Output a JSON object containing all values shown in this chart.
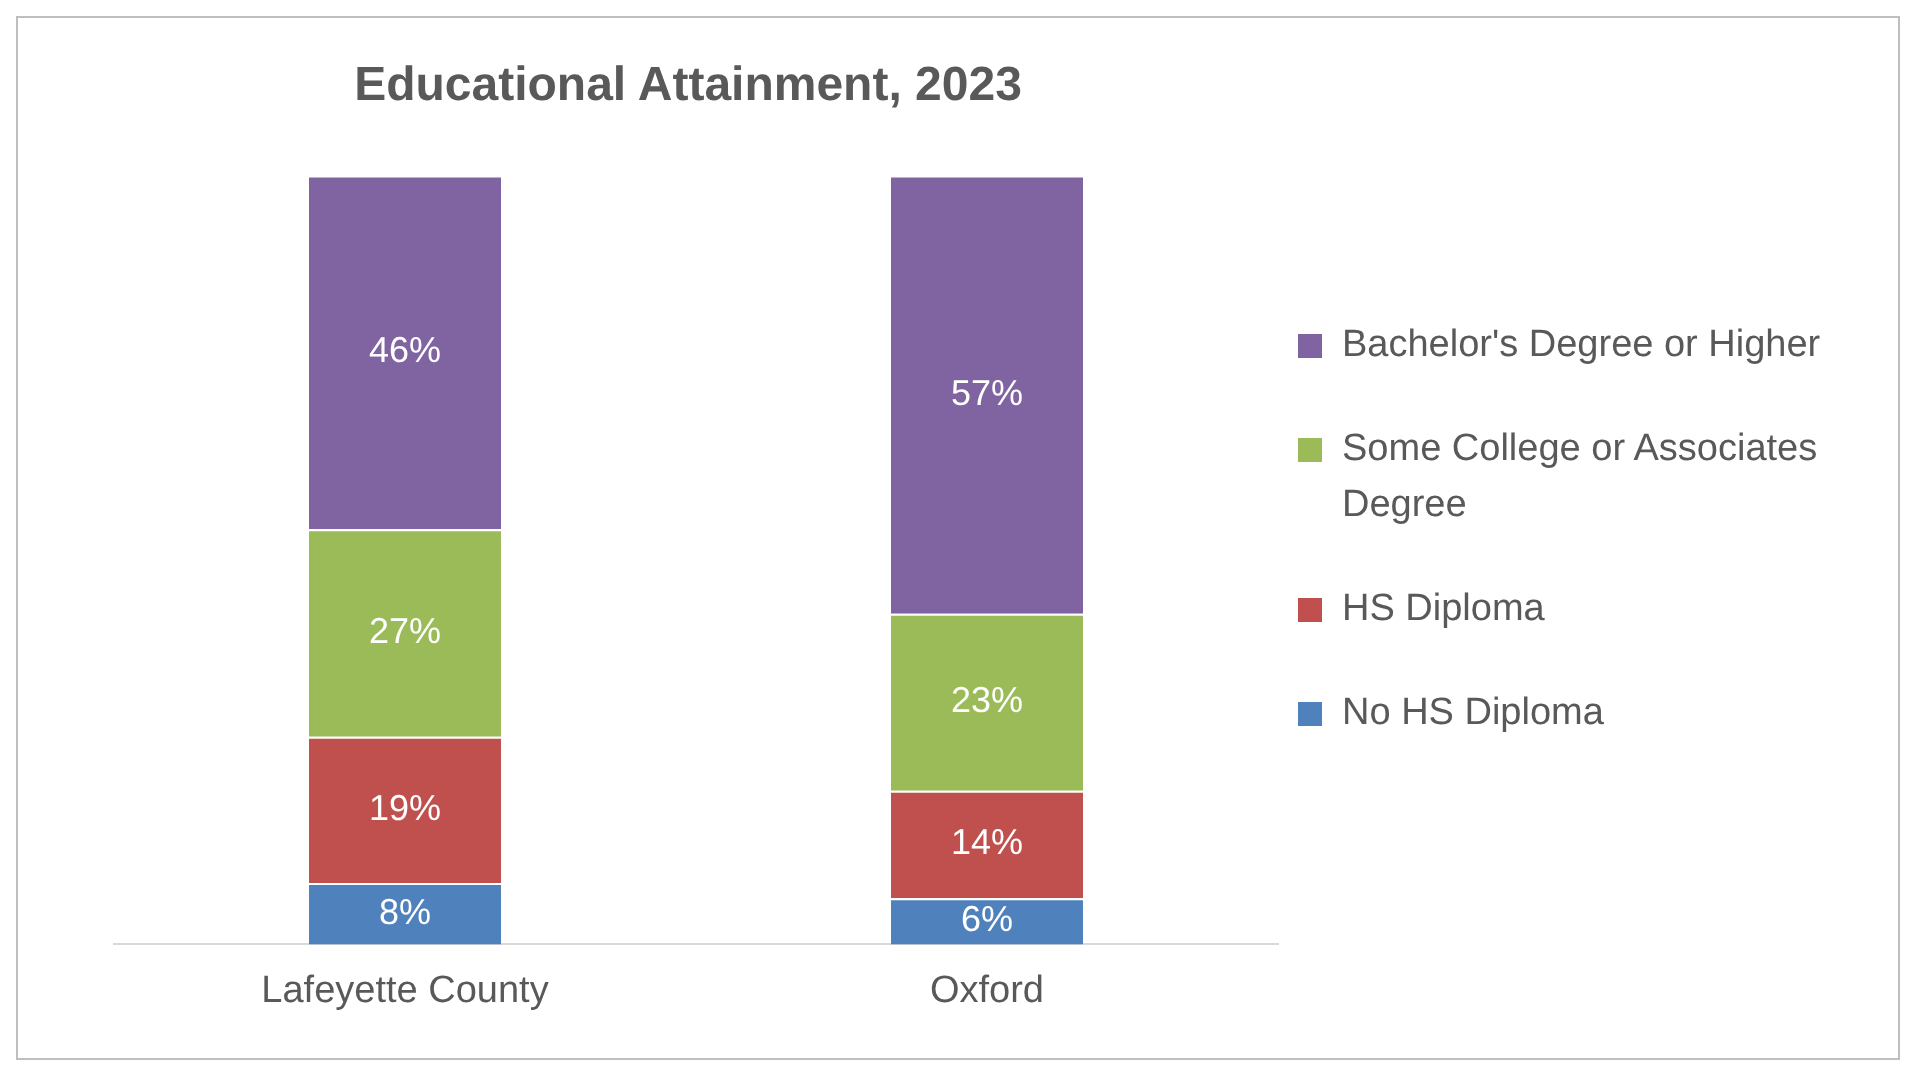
{
  "chart_data": {
    "type": "bar",
    "title": "Educational Attainment, 2023",
    "categories": [
      "Lafeyette County",
      "Oxford"
    ],
    "stacked": true,
    "ylim": [
      0,
      100
    ],
    "tick_labels": "x",
    "grid": false,
    "legend": "right",
    "series": [
      {
        "name": "No HS Diploma",
        "color": "#4f81bd",
        "values": [
          8,
          6
        ],
        "value_labels": [
          "8%",
          "6%"
        ]
      },
      {
        "name": "HS Diploma",
        "color": "#c0504d",
        "values": [
          19,
          14
        ],
        "value_labels": [
          "19%",
          "14%"
        ]
      },
      {
        "name": "Some College or Associates Degree",
        "color": "#9bbb59",
        "values": [
          27,
          23
        ],
        "value_labels": [
          "27%",
          "23%"
        ]
      },
      {
        "name": "Bachelor's Degree or Higher",
        "color": "#8064a2",
        "values": [
          46,
          57
        ],
        "value_labels": [
          "46%",
          "57%"
        ]
      }
    ]
  }
}
